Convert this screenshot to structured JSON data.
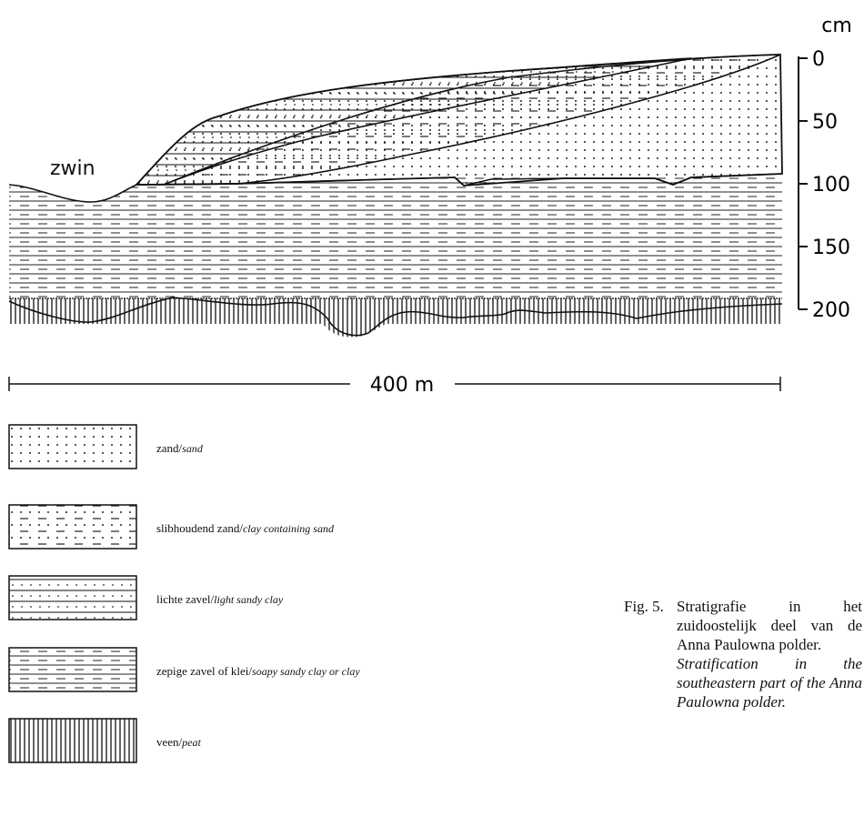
{
  "depth_axis": {
    "unit": "cm",
    "ticks": [
      "0",
      "50",
      "100",
      "150",
      "200"
    ]
  },
  "labels": {
    "channel": "zwin",
    "scale_bar": "400 m"
  },
  "legend": [
    {
      "dutch": "zand/",
      "english": "sand"
    },
    {
      "dutch": "slibhoudend zand/",
      "english": "clay containing sand"
    },
    {
      "dutch": "lichte zavel/",
      "english": "light sandy clay"
    },
    {
      "dutch": "zepige zavel of klei/",
      "english": "soapy sandy clay or clay"
    },
    {
      "dutch": "veen/",
      "english": "peat"
    }
  ],
  "caption": {
    "label": "Fig. 5.",
    "dutch": "Stratigrafie in het zuidoostelijk deel van de Anna Paulowna polder.",
    "english": "Stratification in the southeastern part of the Anna Paulowna polder."
  }
}
